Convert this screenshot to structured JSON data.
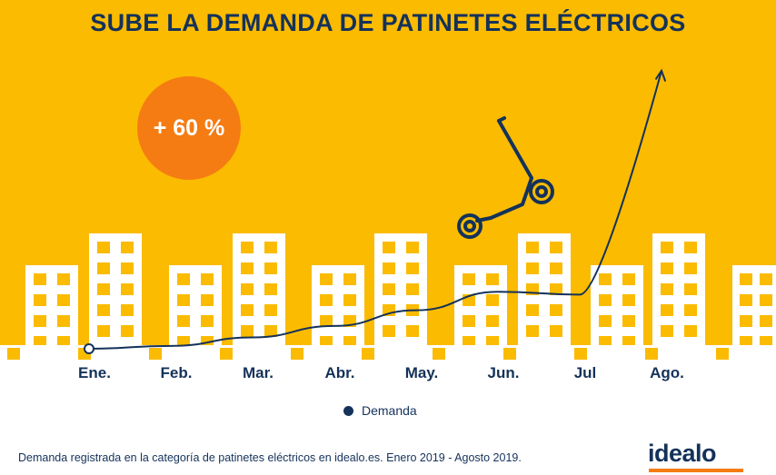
{
  "colors": {
    "background_sky": "#fbbb00",
    "building": "#ffffff",
    "window": "#fbbb00",
    "navy": "#14325a",
    "accent": "#f57c12"
  },
  "badge": {
    "label": "+ 60 %"
  },
  "legend": {
    "label": "Demanda"
  },
  "footnote": "Demanda registrada en la categoría de patinetes eléctricos en idealo.es. Enero 2019 - Agosto 2019.",
  "brand": {
    "name": "idealo"
  },
  "illustration": {
    "icon": "electric-scooter-icon"
  },
  "chart_data": {
    "type": "line",
    "title": "SUBE LA DEMANDA DE PATINETES ELÉCTRICOS",
    "categories": [
      "Ene.",
      "Feb.",
      "Mar.",
      "Abr.",
      "May.",
      "Jun.",
      "Jul",
      "Ago."
    ],
    "series": [
      {
        "name": "Demanda",
        "values": [
          0,
          2,
          8,
          16,
          27,
          40,
          38,
          195
        ]
      }
    ],
    "xlabel": "",
    "ylabel": "",
    "ylim": [
      0,
      200
    ],
    "annotation": "+ 60 %",
    "end_marker": "arrow",
    "start_marker": "hollow-circle",
    "grid": false
  }
}
